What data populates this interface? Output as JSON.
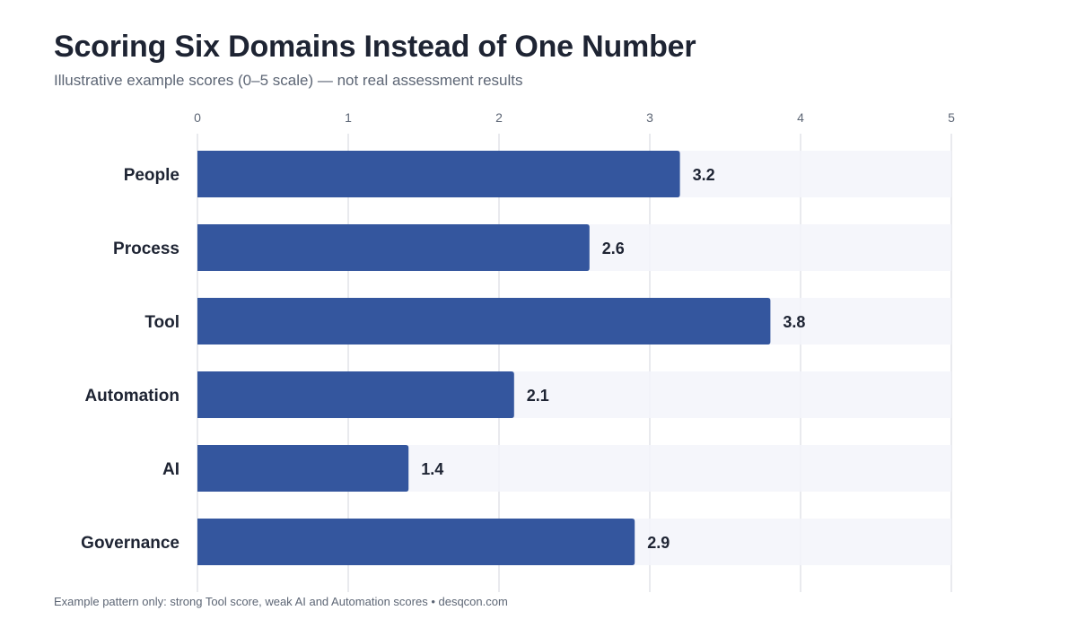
{
  "header": {
    "title": "Scoring Six Domains Instead of One Number",
    "subtitle": "Illustrative example scores (0–5 scale) — not real assessment results"
  },
  "footer": {
    "note": "Example pattern only: strong Tool score, weak AI and Automation scores • desqcon.com"
  },
  "colors": {
    "bar": "#34569e",
    "track": "#f3f5fa",
    "grid": "#e2e4e8",
    "label": "#1e2433",
    "tick": "#5d6675"
  },
  "chart_data": {
    "type": "bar",
    "orientation": "horizontal",
    "categories": [
      "People",
      "Process",
      "Tool",
      "Automation",
      "AI",
      "Governance"
    ],
    "values": [
      3.2,
      2.6,
      3.8,
      2.1,
      1.4,
      2.9
    ],
    "value_labels": [
      "3.2",
      "2.6",
      "3.8",
      "2.1",
      "1.4",
      "2.9"
    ],
    "xlim": [
      0,
      5
    ],
    "xticks": [
      0,
      1,
      2,
      3,
      4,
      5
    ],
    "xtick_labels": [
      "0",
      "1",
      "2",
      "3",
      "4",
      "5"
    ],
    "axis_position": "top",
    "grid": true,
    "legend": "none"
  }
}
